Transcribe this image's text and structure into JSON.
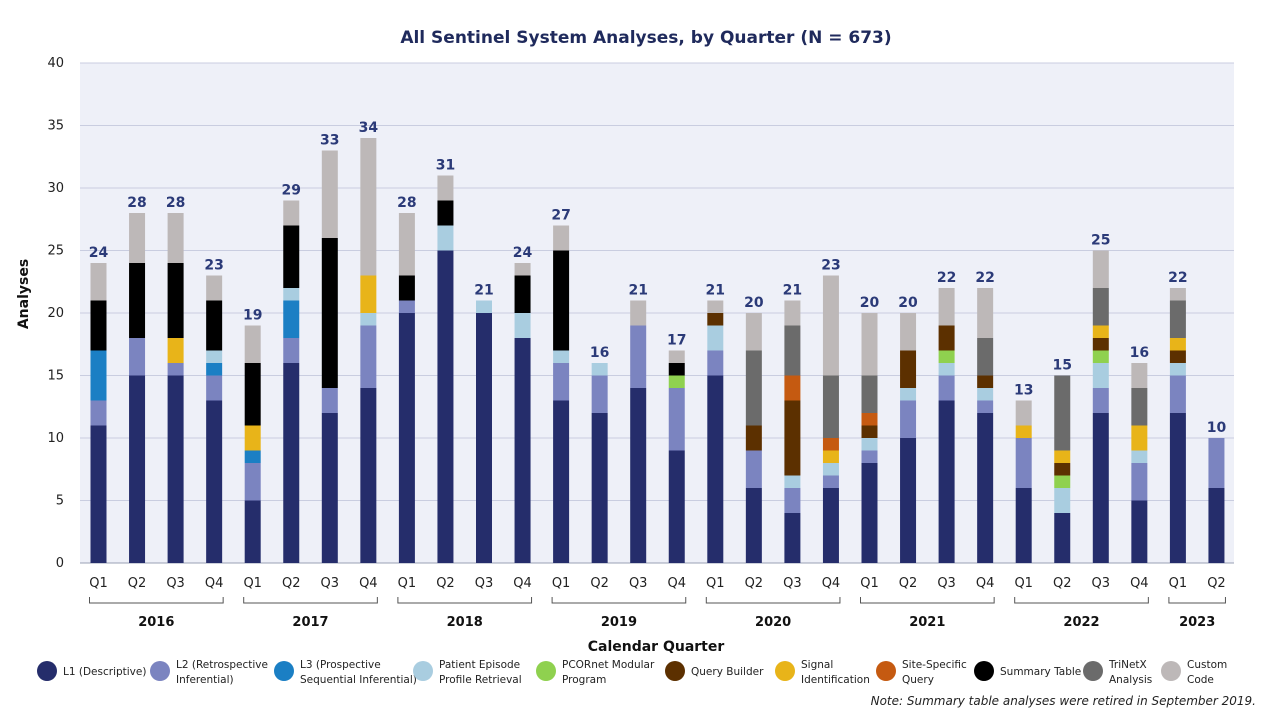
{
  "chart_data": {
    "type": "bar",
    "stacked": true,
    "title": "All Sentinel System Analyses, by Quarter (N = 673)",
    "xlabel": "Calendar Quarter",
    "ylabel": "Analyses",
    "ylim": [
      0,
      40
    ],
    "yticks": [
      "0",
      "5",
      "10",
      "15",
      "20",
      "25",
      "30",
      "35",
      "40"
    ],
    "grid": true,
    "categories": [
      "2016 Q1",
      "2016 Q2",
      "2016 Q3",
      "2016 Q4",
      "2017 Q1",
      "2017 Q2",
      "2017 Q3",
      "2017 Q4",
      "2018 Q1",
      "2018 Q2",
      "2018 Q3",
      "2018 Q4",
      "2019 Q1",
      "2019 Q2",
      "2019 Q3",
      "2019 Q4",
      "2020 Q1",
      "2020 Q2",
      "2020 Q3",
      "2020 Q4",
      "2021 Q1",
      "2021 Q2",
      "2021 Q3",
      "2021 Q4",
      "2022 Q1",
      "2022 Q2",
      "2022 Q3",
      "2022 Q4",
      "2023 Q1",
      "2023 Q2"
    ],
    "quarter_labels": [
      "Q1",
      "Q2",
      "Q3",
      "Q4",
      "Q1",
      "Q2",
      "Q3",
      "Q4",
      "Q1",
      "Q2",
      "Q3",
      "Q4",
      "Q1",
      "Q2",
      "Q3",
      "Q4",
      "Q1",
      "Q2",
      "Q3",
      "Q4",
      "Q1",
      "Q2",
      "Q3",
      "Q4",
      "Q1",
      "Q2",
      "Q3",
      "Q4",
      "Q1",
      "Q2"
    ],
    "years": [
      {
        "label": "2016",
        "first": 0,
        "last": 3
      },
      {
        "label": "2017",
        "first": 4,
        "last": 7
      },
      {
        "label": "2018",
        "first": 8,
        "last": 11
      },
      {
        "label": "2019",
        "first": 12,
        "last": 15
      },
      {
        "label": "2020",
        "first": 16,
        "last": 19
      },
      {
        "label": "2021",
        "first": 20,
        "last": 23
      },
      {
        "label": "2022",
        "first": 24,
        "last": 27
      },
      {
        "label": "2023",
        "first": 28,
        "last": 29
      }
    ],
    "totals": [
      "24",
      "28",
      "28",
      "23",
      "19",
      "29",
      "33",
      "34",
      "28",
      "31",
      "21",
      "24",
      "27",
      "16",
      "21",
      "17",
      "21",
      "20",
      "21",
      "23",
      "20",
      "20",
      "22",
      "22",
      "13",
      "15",
      "25",
      "16",
      "22",
      "10"
    ],
    "series": [
      {
        "name": "L1 (Descriptive)",
        "color": "#252d6b",
        "values": [
          11,
          15,
          15,
          13,
          5,
          16,
          12,
          14,
          20,
          25,
          20,
          18,
          13,
          12,
          14,
          9,
          15,
          6,
          4,
          6,
          8,
          10,
          13,
          12,
          6,
          4,
          12,
          5,
          12,
          6
        ]
      },
      {
        "name": "L2 (Retrospective Inferential)",
        "color": "#7b84c0",
        "values": [
          2,
          3,
          1,
          2,
          3,
          2,
          2,
          5,
          1,
          0,
          0,
          0,
          3,
          3,
          5,
          5,
          2,
          3,
          2,
          1,
          1,
          3,
          2,
          1,
          4,
          0,
          2,
          3,
          3,
          4
        ]
      },
      {
        "name": "L3 (Prospective Sequential Inferential)",
        "color": "#1b7fc4",
        "values": [
          4,
          0,
          0,
          1,
          1,
          3,
          0,
          0,
          0,
          0,
          0,
          0,
          0,
          0,
          0,
          0,
          0,
          0,
          0,
          0,
          0,
          0,
          0,
          0,
          0,
          0,
          0,
          0,
          0,
          0
        ]
      },
      {
        "name": "Patient Episode Profile Retrieval",
        "color": "#a9cde0",
        "values": [
          0,
          0,
          0,
          1,
          0,
          1,
          0,
          1,
          0,
          2,
          1,
          2,
          1,
          1,
          0,
          0,
          2,
          0,
          1,
          1,
          1,
          1,
          1,
          1,
          0,
          2,
          2,
          1,
          1,
          0
        ]
      },
      {
        "name": "PCORnet Modular Program",
        "color": "#8fd14f",
        "values": [
          0,
          0,
          0,
          0,
          0,
          0,
          0,
          0,
          0,
          0,
          0,
          0,
          0,
          0,
          0,
          1,
          0,
          0,
          0,
          0,
          0,
          0,
          1,
          0,
          0,
          1,
          1,
          0,
          0,
          0
        ]
      },
      {
        "name": "Query Builder",
        "color": "#5c3000",
        "values": [
          0,
          0,
          0,
          0,
          0,
          0,
          0,
          0,
          0,
          0,
          0,
          0,
          0,
          0,
          0,
          0,
          1,
          2,
          6,
          0,
          1,
          3,
          2,
          1,
          0,
          1,
          1,
          0,
          1,
          0
        ]
      },
      {
        "name": "Signal Identification",
        "color": "#e8b419",
        "values": [
          0,
          0,
          2,
          0,
          2,
          0,
          0,
          3,
          0,
          0,
          0,
          0,
          0,
          0,
          0,
          0,
          0,
          0,
          0,
          1,
          0,
          0,
          0,
          0,
          1,
          1,
          1,
          2,
          1,
          0
        ]
      },
      {
        "name": "Site-Specific Query",
        "color": "#c55a11",
        "values": [
          0,
          0,
          0,
          0,
          0,
          0,
          0,
          0,
          0,
          0,
          0,
          0,
          0,
          0,
          0,
          0,
          0,
          0,
          2,
          1,
          1,
          0,
          0,
          0,
          0,
          0,
          0,
          0,
          0,
          0
        ]
      },
      {
        "name": "Summary Table",
        "color": "#000000",
        "values": [
          4,
          6,
          6,
          4,
          5,
          5,
          12,
          0,
          2,
          2,
          0,
          3,
          8,
          0,
          0,
          1,
          0,
          0,
          0,
          0,
          0,
          0,
          0,
          0,
          0,
          0,
          0,
          0,
          0,
          0
        ]
      },
      {
        "name": "TriNetX Analysis",
        "color": "#6b6b6b",
        "values": [
          0,
          0,
          0,
          0,
          0,
          0,
          0,
          0,
          0,
          0,
          0,
          0,
          0,
          0,
          0,
          0,
          0,
          6,
          4,
          5,
          3,
          0,
          0,
          3,
          0,
          6,
          3,
          3,
          3,
          0
        ]
      },
      {
        "name": "Custom Code",
        "color": "#bdb8b8",
        "values": [
          3,
          4,
          4,
          2,
          3,
          2,
          7,
          11,
          5,
          2,
          0,
          1,
          2,
          0,
          2,
          1,
          1,
          3,
          2,
          8,
          5,
          3,
          3,
          4,
          2,
          0,
          3,
          2,
          1,
          0
        ]
      }
    ],
    "legend": [
      {
        "line1": "L1 (Descriptive)",
        "line2": "",
        "color": "#252d6b"
      },
      {
        "line1": "L2 (Retrospective",
        "line2": "Inferential)",
        "color": "#7b84c0"
      },
      {
        "line1": "L3 (Prospective",
        "line2": "Sequential Inferential)",
        "color": "#1b7fc4"
      },
      {
        "line1": "Patient Episode",
        "line2": "Profile Retrieval",
        "color": "#a9cde0"
      },
      {
        "line1": "PCORnet Modular",
        "line2": "Program",
        "color": "#8fd14f"
      },
      {
        "line1": "Query Builder",
        "line2": "",
        "color": "#5c3000"
      },
      {
        "line1": "Signal",
        "line2": "Identification",
        "color": "#e8b419"
      },
      {
        "line1": "Site-Specific",
        "line2": "Query",
        "color": "#c55a11"
      },
      {
        "line1": "Summary Table",
        "line2": "",
        "color": "#000000"
      },
      {
        "line1": "TriNetX",
        "line2": "Analysis",
        "color": "#6b6b6b"
      },
      {
        "line1": "Custom",
        "line2": "Code",
        "color": "#bdb8b8"
      }
    ],
    "legend_position": "bottom",
    "note": "Note: Summary table analyses were retired in September 2019."
  }
}
